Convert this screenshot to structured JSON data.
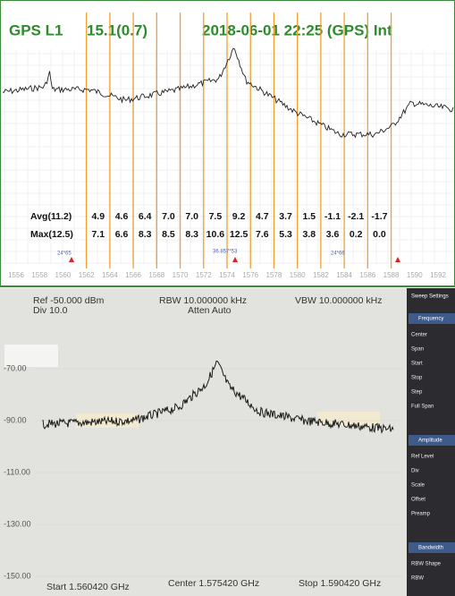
{
  "top": {
    "title": [
      "GPS L1",
      "15.1(0.7)",
      "2018-06-01 22:25 (GPS) Int"
    ],
    "xticks": [
      1556,
      1558,
      1560,
      1562,
      1564,
      1566,
      1568,
      1570,
      1572,
      1574,
      1576,
      1578,
      1580,
      1582,
      1584,
      1586,
      1588,
      1590,
      1592
    ],
    "bands": [
      1562,
      1564,
      1566,
      1568,
      1570,
      1572,
      1574,
      1576,
      1578,
      1580,
      1582,
      1584,
      1586,
      1588
    ],
    "avg": {
      "label": "Avg(11.2)",
      "values": [
        4.9,
        4.6,
        6.4,
        7.0,
        7.0,
        7.5,
        9.2,
        4.7,
        3.7,
        1.5,
        -1.1,
        -2.1,
        -1.7
      ],
      "value_labels": [
        "4.9",
        "4.6",
        "6.4",
        "7.0",
        "7.0",
        "7.5",
        "9.2",
        "4.7",
        "3.7",
        "1.5",
        "-1.1",
        "-2.1",
        "-1.7"
      ]
    },
    "max": {
      "label": "Max(12.5)",
      "values": [
        7.1,
        6.6,
        8.3,
        8.5,
        8.3,
        10.6,
        12.5,
        7.6,
        5.3,
        3.8,
        3.6,
        0.2,
        0.0
      ],
      "value_labels": [
        "7.1",
        "6.6",
        "8.3",
        "8.5",
        "8.3",
        "10.6",
        "12.5",
        "7.6",
        "5.3",
        "3.8",
        "3.6",
        "0.2",
        "0.0"
      ]
    },
    "markers": [
      "24*65",
      "36.857*53",
      "24*66"
    ]
  },
  "bottom": {
    "header": [
      "Ref -50.000 dBm",
      "Div 10.0",
      "RBW 10.000000 kHz",
      "Atten Auto",
      "VBW 10.000000 kHz"
    ],
    "ylabels": [
      "-70.00",
      "-90.00",
      "-110.00",
      "-130.00",
      "-150.00"
    ],
    "footer": [
      "Start 1.560420 GHz",
      "Center 1.575420 GHz",
      "Stop 1.590420 GHz"
    ],
    "side": {
      "title": "Sweep Settings",
      "groups": [
        {
          "name": "Frequency",
          "items": [
            "Center",
            "Span",
            "Start",
            "Stop",
            "Step",
            "Full Span"
          ]
        },
        {
          "name": "Amplitude",
          "items": [
            "Ref Level",
            "Div",
            "Scale",
            "Offset",
            "Preamp"
          ]
        },
        {
          "name": "Bandwidth",
          "items": [
            "RBW Shape",
            "RBW"
          ]
        }
      ]
    }
  }
}
